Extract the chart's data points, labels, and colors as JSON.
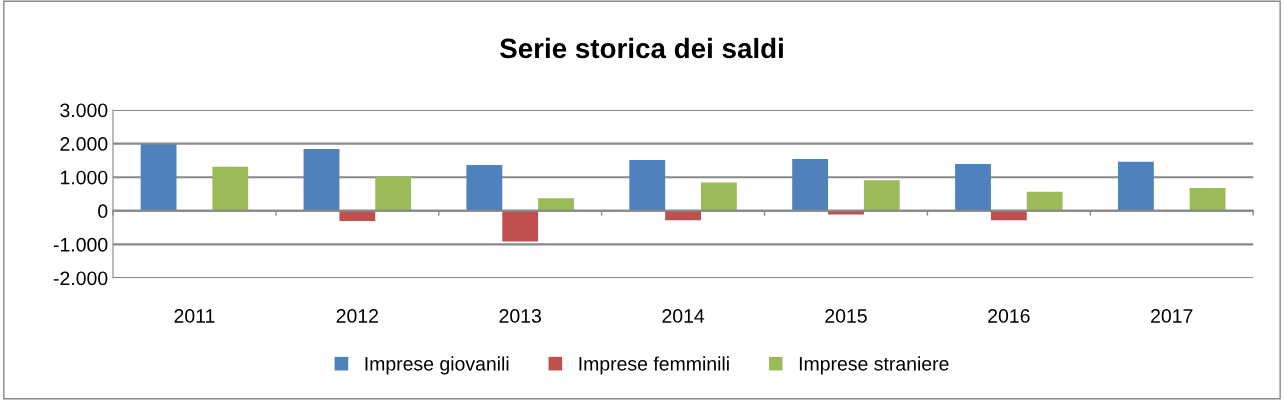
{
  "chart_data": {
    "type": "bar",
    "title": "Serie storica dei saldi",
    "categories": [
      "2011",
      "2012",
      "2013",
      "2014",
      "2015",
      "2016",
      "2017"
    ],
    "series": [
      {
        "name": "Imprese giovanili",
        "color": "#4f81bd",
        "values": [
          1980,
          1840,
          1360,
          1510,
          1540,
          1390,
          1460
        ]
      },
      {
        "name": "Imprese femminili",
        "color": "#c0504d",
        "values": [
          0,
          -300,
          -910,
          -280,
          -110,
          -280,
          20
        ]
      },
      {
        "name": "Imprese straniere",
        "color": "#9bbb59",
        "values": [
          1310,
          1020,
          370,
          840,
          910,
          570,
          680
        ]
      }
    ],
    "ylim": [
      -2000,
      3000
    ],
    "yticks": [
      {
        "value": -2000,
        "label": "-2.000"
      },
      {
        "value": -1000,
        "label": "-1.000"
      },
      0,
      {
        "value": 1000,
        "label": "1.000"
      },
      {
        "value": 2000,
        "label": "2.000"
      },
      {
        "value": 3000,
        "label": "3.000"
      }
    ],
    "grid": "y",
    "legend": "bottom"
  }
}
